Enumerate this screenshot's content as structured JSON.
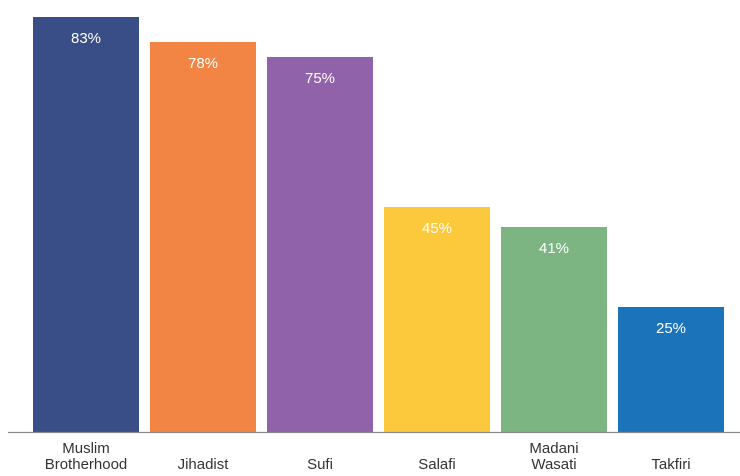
{
  "chart_data": {
    "type": "bar",
    "title": "",
    "xlabel": "",
    "ylabel": "",
    "ylim": [
      0,
      100
    ],
    "grid": false,
    "legend": "none",
    "categories": [
      [
        "Muslim",
        "Brotherhood"
      ],
      [
        "Jihadist"
      ],
      [
        "Sufi"
      ],
      [
        "Salafi"
      ],
      [
        "Madani",
        "Wasati"
      ],
      [
        "Takfiri"
      ]
    ],
    "values": [
      83,
      78,
      75,
      45,
      41,
      25
    ],
    "data_labels": [
      "83%",
      "78%",
      "75%",
      "45%",
      "41%",
      "25%"
    ],
    "colors": [
      "#394D86",
      "#F28444",
      "#8F62A9",
      "#FCC93C",
      "#7CB482",
      "#1B73BA"
    ],
    "axis_color": "#888888",
    "label_color": "#333333"
  }
}
